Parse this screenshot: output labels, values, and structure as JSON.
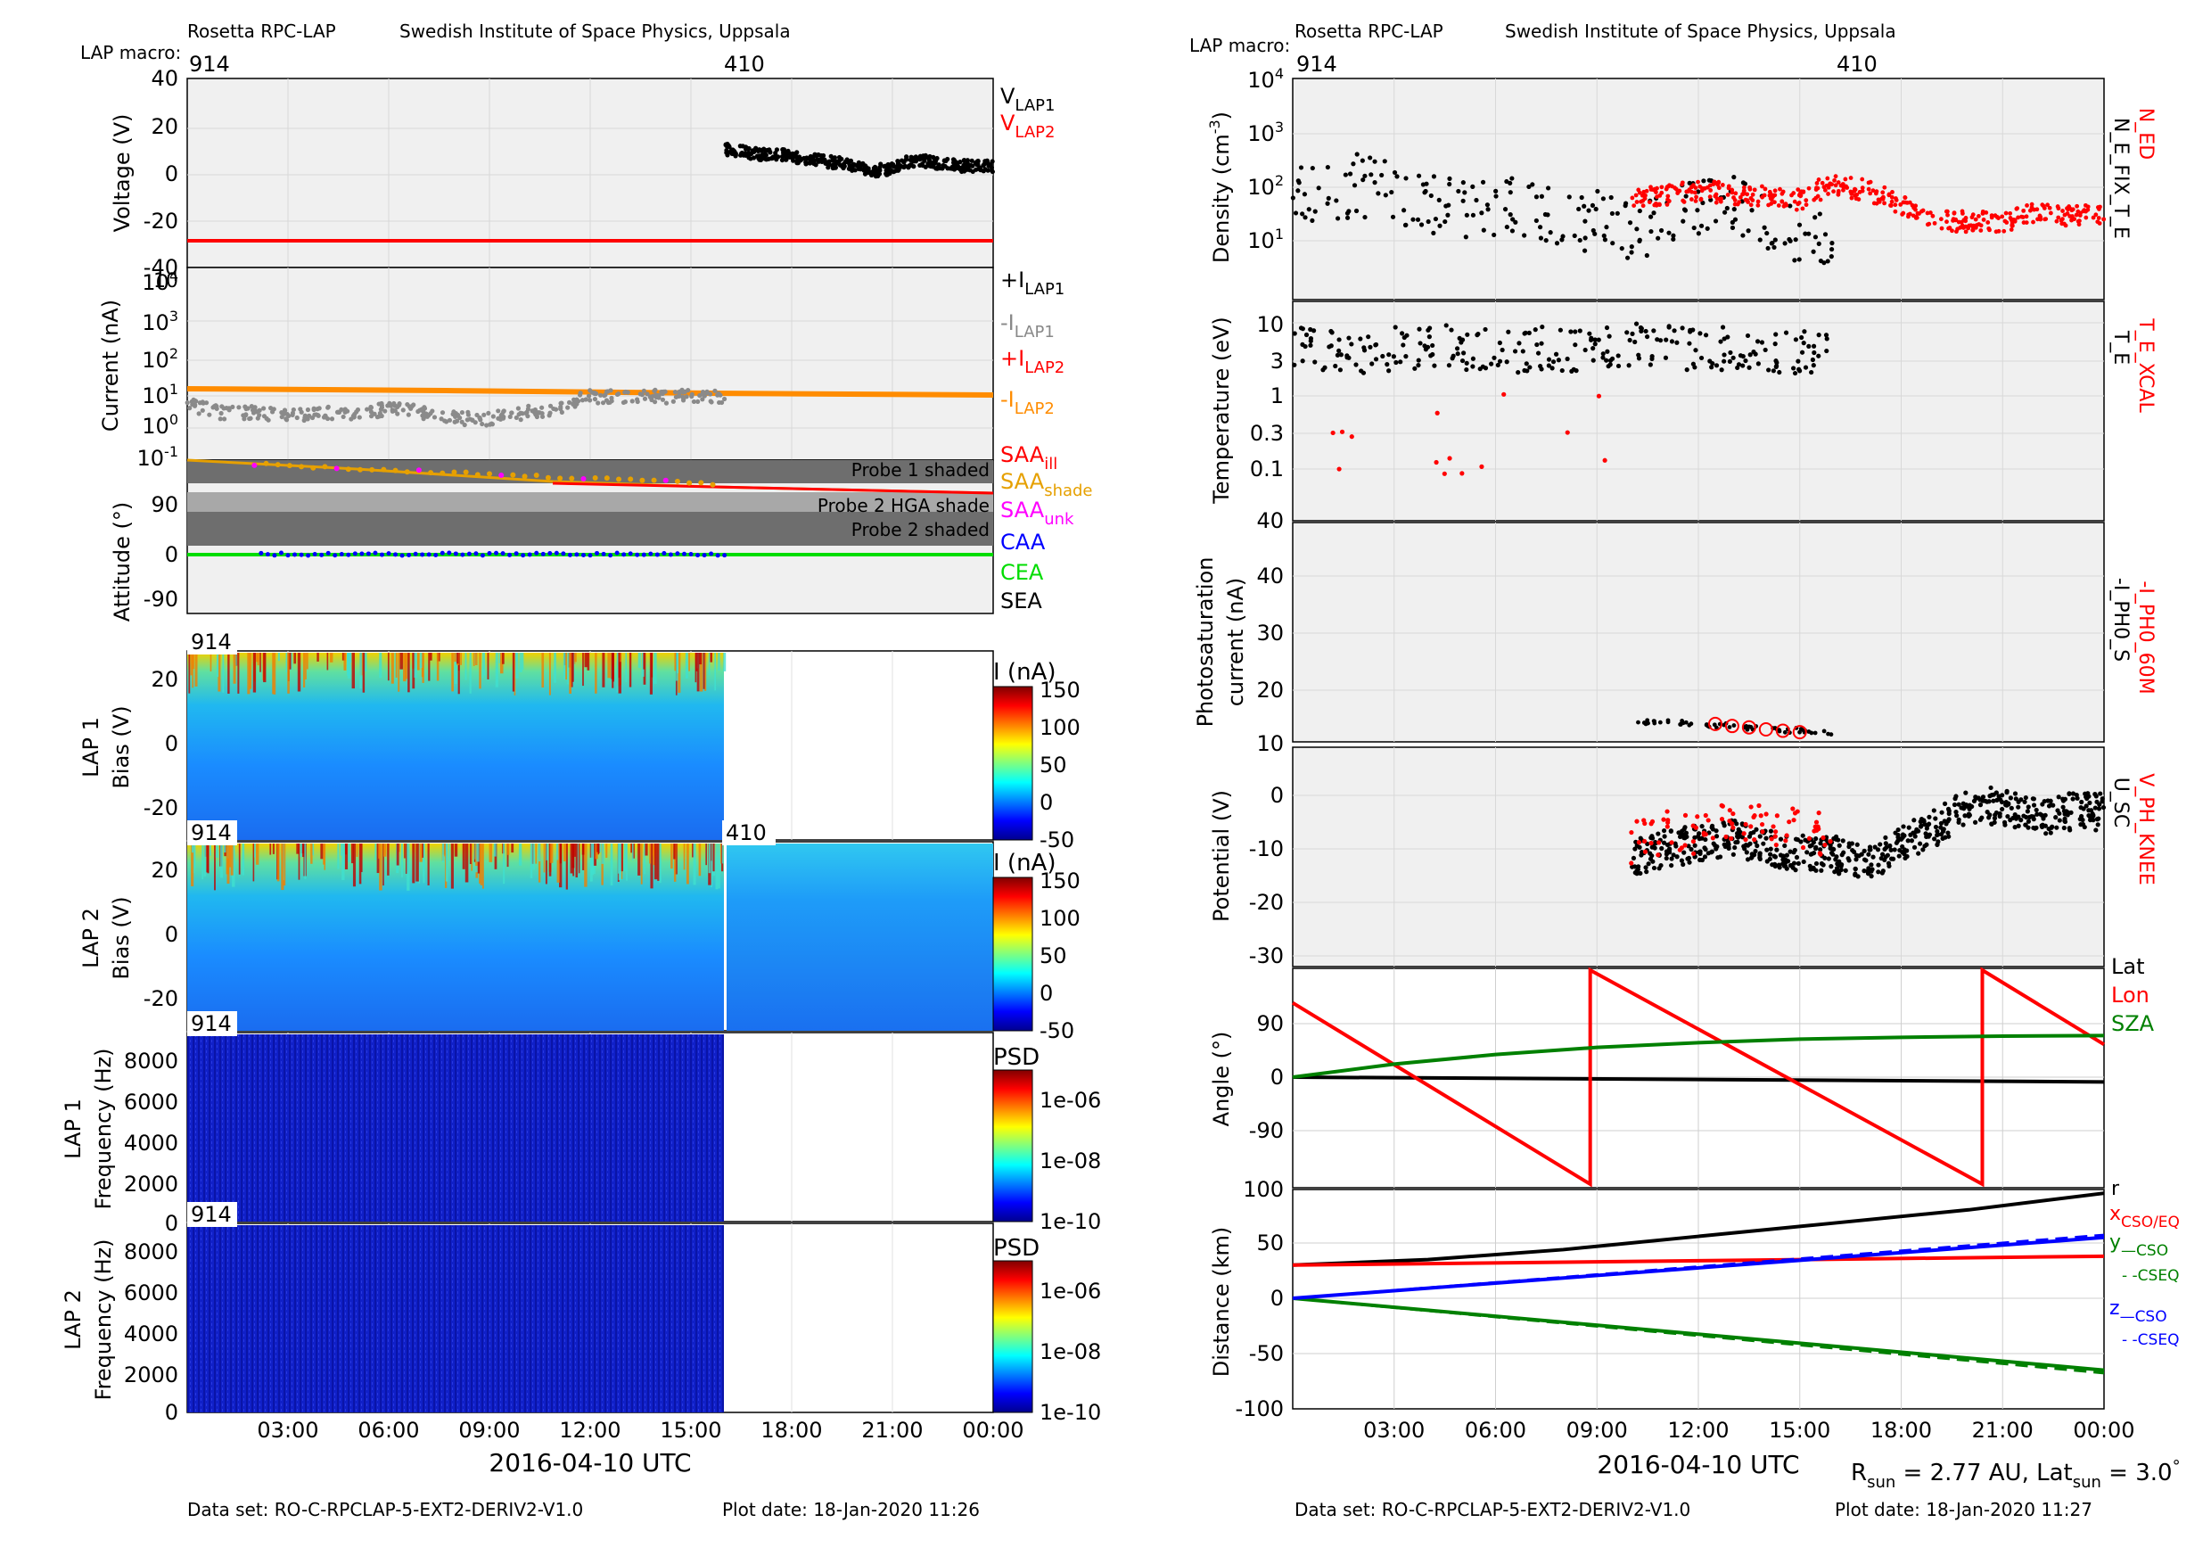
{
  "left": {
    "header": {
      "instrument": "Rosetta RPC-LAP",
      "institute": "Swedish Institute of Space Physics, Uppsala",
      "macro_label": "LAP macro:",
      "macros": [
        "914",
        "410"
      ]
    },
    "footer": {
      "dataset": "Data set: RO-C-RPCLAP-5-EXT2-DERIV2-V1.0",
      "plot_date": "Plot date: 18-Jan-2020 11:26"
    },
    "xaxis": {
      "title": "2016-04-10 UTC",
      "ticks": [
        "03:00",
        "06:00",
        "09:00",
        "12:00",
        "15:00",
        "18:00",
        "21:00",
        "00:00"
      ]
    }
  },
  "right": {
    "header": {
      "instrument": "Rosetta RPC-LAP",
      "institute": "Swedish Institute of Space Physics, Uppsala",
      "macro_label": "LAP macro:",
      "macros": [
        "914",
        "410"
      ]
    },
    "footer": {
      "dataset": "Data set: RO-C-RPCLAP-5-EXT2-DERIV2-V1.0",
      "plot_date": "Plot date: 18-Jan-2020 11:27"
    },
    "xaxis": {
      "title": "2016-04-10 UTC",
      "ticks": [
        "03:00",
        "06:00",
        "09:00",
        "12:00",
        "15:00",
        "18:00",
        "21:00",
        "00:00"
      ]
    },
    "sun_info": "R_sun = 2.77 AU, Lat_sun = 3.0°"
  },
  "chart_data": [
    {
      "type": "scatter",
      "ylabel": "Voltage (V)",
      "ylim": [
        -40,
        40
      ],
      "yticks": [
        "40",
        "20",
        "0",
        "-20",
        "-40"
      ],
      "xlim_hours": [
        0,
        24
      ],
      "grid": true,
      "legend": [
        "V_LAP1",
        "V_LAP2"
      ],
      "legend_colors": [
        "#000000",
        "#ff0000"
      ],
      "series": [
        {
          "name": "V_LAP2",
          "kind": "line",
          "x": [
            0,
            24
          ],
          "y": [
            -28,
            -28
          ]
        },
        {
          "name": "V_LAP1",
          "kind": "scatter",
          "x": [
            16.0,
            16.5,
            17.0,
            17.5,
            18.0,
            18.5,
            19.0,
            19.5,
            20.0,
            20.5,
            21.0,
            21.5,
            22.0,
            22.5,
            23.0,
            23.5,
            24.0
          ],
          "y": [
            10,
            9,
            8,
            8,
            7,
            6,
            5,
            4,
            2,
            1,
            2,
            5,
            5,
            4,
            3,
            3,
            3
          ]
        }
      ]
    },
    {
      "type": "scatter",
      "ylabel": "Current (nA)",
      "yscale": "log",
      "ylim": [
        0.1,
        30000
      ],
      "yticks": [
        "10^4",
        "10^3",
        "10^2",
        "10^1",
        "10^0",
        "10^-1"
      ],
      "xlim_hours": [
        0,
        24
      ],
      "legend": [
        "+I_LAP1",
        "-I_LAP1",
        "+I_LAP2",
        "-I_LAP2"
      ],
      "legend_colors": [
        "#000000",
        "#888888",
        "#ff0000",
        "#ff8c00"
      ],
      "series": [
        {
          "name": "-I_LAP2",
          "kind": "line",
          "x": [
            0,
            6,
            12,
            18,
            24
          ],
          "y": [
            20,
            18,
            16,
            15,
            14
          ]
        },
        {
          "name": "-I_LAP1",
          "kind": "scatter",
          "x": [
            0,
            1,
            2,
            3,
            4,
            5,
            6,
            7,
            8,
            9,
            10,
            11,
            12,
            13,
            14,
            15,
            16
          ],
          "y": [
            5,
            3,
            3,
            2.5,
            3,
            2.5,
            4,
            3,
            2,
            2,
            3,
            3,
            9,
            9,
            9,
            9,
            9
          ]
        }
      ]
    },
    {
      "type": "scatter",
      "ylabel": "Attitude (°)",
      "ylim": [
        -135,
        135
      ],
      "yticks": [
        "90",
        "0",
        "-90"
      ],
      "xlim_hours": [
        0,
        24
      ],
      "legend": [
        "SAA_ill",
        "SAA_shade",
        "SAA_unk",
        "CAA",
        "CEA",
        "SEA"
      ],
      "legend_colors": [
        "#ff0000",
        "#e6a000",
        "#ff00ff",
        "#0000ff",
        "#00dd00",
        "#000000"
      ],
      "bands": [
        "Probe 1 shaded",
        "Probe 2 HGA shade",
        "Probe 2 shaded"
      ],
      "series": [
        {
          "name": "SAA",
          "x": [
            0,
            12,
            24
          ],
          "y": [
            132,
            112,
            95
          ]
        },
        {
          "name": "CEA",
          "x": [
            0,
            24
          ],
          "y": [
            -2,
            -2
          ]
        },
        {
          "name": "CAA",
          "x": [
            2,
            16
          ],
          "y": [
            0,
            0
          ]
        }
      ]
    },
    {
      "type": "heatmap",
      "ylabel": "LAP 1 Bias (V)",
      "ylim": [
        -25,
        28
      ],
      "yticks": [
        "20",
        "0",
        "-20"
      ],
      "colorbar": {
        "label": "I (nA)",
        "ticks": [
          "150",
          "100",
          "50",
          "0",
          "-50"
        ]
      },
      "tag": "914",
      "x_end_hours": 16
    },
    {
      "type": "heatmap",
      "ylabel": "LAP 2 Bias (V)",
      "ylim": [
        -25,
        28
      ],
      "yticks": [
        "20",
        "0",
        "-20"
      ],
      "colorbar": {
        "label": "I (nA)",
        "ticks": [
          "150",
          "100",
          "50",
          "0",
          "-50"
        ]
      },
      "tags": [
        "914",
        "410"
      ],
      "x_end_hours": 24
    },
    {
      "type": "heatmap",
      "ylabel": "LAP 1 Frequency (Hz)",
      "ylim": [
        0,
        9000
      ],
      "yticks": [
        "8000",
        "6000",
        "4000",
        "2000",
        "0"
      ],
      "colorbar": {
        "label": "PSD",
        "ticks": [
          "1e-06",
          "1e-08",
          "1e-10"
        ]
      },
      "tag": "914",
      "x_end_hours": 16
    },
    {
      "type": "heatmap",
      "ylabel": "LAP 2 Frequency (Hz)",
      "ylim": [
        0,
        9000
      ],
      "yticks": [
        "8000",
        "6000",
        "4000",
        "2000",
        "0"
      ],
      "colorbar": {
        "label": "PSD",
        "ticks": [
          "1e-06",
          "1e-08",
          "1e-10"
        ]
      },
      "tag": "914",
      "x_end_hours": 16
    },
    {
      "type": "scatter",
      "ylabel": "Density (cm^-3)",
      "yscale": "log",
      "ylim": [
        3,
        10000
      ],
      "yticks": [
        "10^4",
        "10^3",
        "10^2",
        "10^1"
      ],
      "xlim_hours": [
        0,
        24
      ],
      "legend": [
        "N_ED",
        "N_E_FIX_T_E"
      ],
      "legend_colors": [
        "#ff0000",
        "#000000"
      ],
      "series": [
        {
          "name": "N_E_FIX_T_E",
          "x": [
            0,
            1,
            2,
            3,
            4,
            5,
            6,
            7,
            8,
            9,
            10,
            11,
            12,
            13,
            14,
            15,
            16
          ],
          "y": [
            100,
            120,
            150,
            90,
            60,
            50,
            60,
            40,
            30,
            30,
            25,
            30,
            60,
            80,
            40,
            20,
            20
          ]
        },
        {
          "name": "N_ED",
          "x": [
            10,
            11,
            12,
            13,
            14,
            15,
            16,
            17,
            18,
            19,
            20,
            21,
            22,
            23,
            24
          ],
          "y": [
            80,
            100,
            120,
            100,
            90,
            80,
            150,
            120,
            60,
            35,
            30,
            30,
            45,
            40,
            40
          ]
        }
      ]
    },
    {
      "type": "scatter",
      "ylabel": "Temperature (eV)",
      "yscale": "log",
      "ylim": [
        0.04,
        20
      ],
      "yticks": [
        "10",
        "3",
        "1",
        "0.3",
        "0.1"
      ],
      "xlim_hours": [
        0,
        24
      ],
      "legend": [
        "T_E_XCAL",
        "T_E"
      ],
      "legend_colors": [
        "#ff0000",
        "#000000"
      ],
      "series": [
        {
          "name": "T_E",
          "x": [
            0,
            1,
            2,
            3,
            4,
            5,
            6,
            7,
            8,
            9,
            10,
            11,
            12,
            13,
            14,
            15,
            16
          ],
          "y": [
            5,
            5,
            4.5,
            5,
            5,
            5.5,
            4.5,
            5,
            5,
            5,
            5.5,
            6,
            5,
            5,
            4.5,
            4.5,
            5
          ]
        }
      ]
    },
    {
      "type": "scatter",
      "ylabel": "Photosaturation current (nA)",
      "ylim": [
        10,
        40
      ],
      "yticks": [
        "40",
        "30",
        "20",
        "10"
      ],
      "xlim_hours": [
        0,
        24
      ],
      "legend": [
        "-I_PH0_60M",
        "-I_PH0_S"
      ],
      "legend_colors": [
        "#ff0000",
        "#000000"
      ],
      "series": [
        {
          "name": "-I_PH0_S",
          "x": [
            10.2,
            11,
            12,
            13,
            14,
            15,
            16
          ],
          "y": [
            11,
            11,
            10.8,
            10.5,
            10,
            9.8,
            9.5
          ]
        },
        {
          "name": "-I_PH0_60M",
          "x": [
            12.5,
            13,
            13.5,
            14,
            14.5,
            15
          ],
          "y": [
            10.8,
            10.5,
            10.3,
            10,
            9.8,
            9.6
          ]
        }
      ]
    },
    {
      "type": "scatter",
      "ylabel": "Potential (V)",
      "ylim": [
        -32,
        4
      ],
      "yticks": [
        "0",
        "-10",
        "-20",
        "-30"
      ],
      "xlim_hours": [
        0,
        24
      ],
      "legend": [
        "V_PH_KNEE",
        "U_SC"
      ],
      "legend_colors": [
        "#ff0000",
        "#000000"
      ],
      "series": [
        {
          "name": "U_SC",
          "x": [
            10,
            11,
            12,
            13,
            14,
            15,
            16,
            17,
            18,
            19,
            20,
            21,
            22,
            23,
            24
          ],
          "y": [
            -12,
            -10,
            -9,
            -8,
            -10,
            -11,
            -11,
            -13,
            -9,
            -6,
            -2,
            -2,
            -4,
            -3,
            -3
          ]
        },
        {
          "name": "V_PH_KNEE",
          "x": [
            10,
            11,
            12,
            13,
            14,
            15,
            16
          ],
          "y": [
            -9,
            -7,
            -7,
            -5,
            -5,
            -6,
            -8
          ]
        }
      ]
    },
    {
      "type": "line",
      "ylabel": "Angle (°)",
      "ylim": [
        -190,
        190
      ],
      "yticks": [
        "90",
        "0",
        "-90"
      ],
      "xlim_hours": [
        0,
        24
      ],
      "legend": [
        "Lat",
        "Lon",
        "SZA"
      ],
      "legend_colors": [
        "#000000",
        "#ff0000",
        "#008000"
      ],
      "series": [
        {
          "name": "Lat",
          "x": [
            0,
            24
          ],
          "y": [
            0,
            -8
          ]
        },
        {
          "name": "Lon",
          "x": [
            0,
            8.8,
            8.8,
            20.4,
            20.4,
            24
          ],
          "y": [
            125,
            -180,
            180,
            -180,
            180,
            55
          ]
        },
        {
          "name": "SZA",
          "x": [
            0,
            3,
            6,
            9,
            12,
            15,
            18,
            21,
            24
          ],
          "y": [
            0,
            22,
            38,
            50,
            58,
            64,
            67,
            69,
            70
          ]
        }
      ]
    },
    {
      "type": "line",
      "ylabel": "Distance (km)",
      "ylim": [
        -100,
        100
      ],
      "yticks": [
        "100",
        "50",
        "0",
        "-50",
        "-100"
      ],
      "xlim_hours": [
        0,
        24
      ],
      "legend": [
        "r",
        "x CSO/EQ",
        "y —CSO",
        "y - -CSEQ",
        "z —CSO",
        "z - -CSEQ"
      ],
      "legend_colors": [
        "#000000",
        "#ff0000",
        "#008000",
        "#008000",
        "#0000ff",
        "#0000ff"
      ],
      "series": [
        {
          "name": "r",
          "x": [
            0,
            4,
            8,
            12,
            16,
            20,
            24
          ],
          "y": [
            30,
            35,
            44,
            56,
            68,
            80,
            95
          ]
        },
        {
          "name": "x",
          "x": [
            0,
            24
          ],
          "y": [
            30,
            38
          ]
        },
        {
          "name": "y_CSO",
          "x": [
            0,
            24
          ],
          "y": [
            0,
            -65
          ]
        },
        {
          "name": "z_CSO",
          "x": [
            0,
            24
          ],
          "y": [
            0,
            55
          ]
        }
      ]
    }
  ]
}
